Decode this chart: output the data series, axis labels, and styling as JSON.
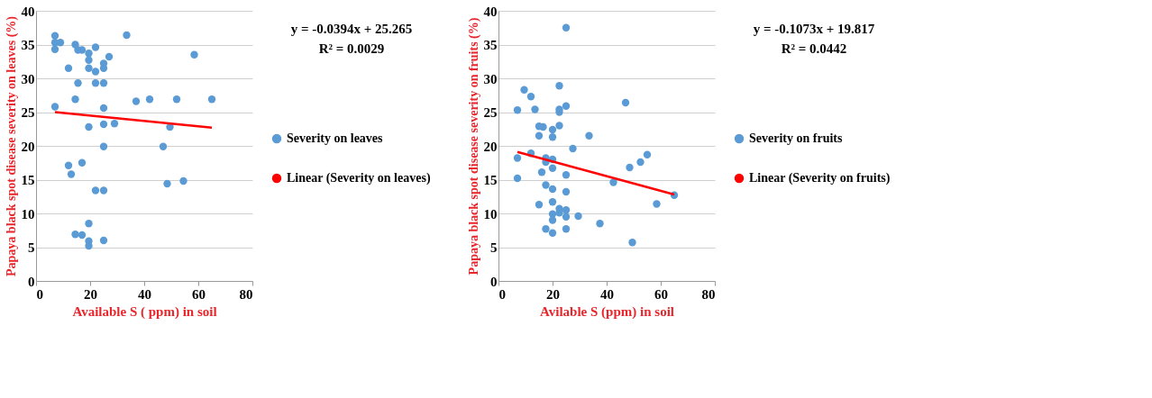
{
  "chart_data": [
    {
      "type": "scatter",
      "ylabel": "Papaya black spot disease severity on leaves (%)",
      "xlabel": "Available S ( ppm) in soil",
      "xlim": [
        0,
        80
      ],
      "xticks": [
        0,
        20,
        40,
        60,
        80
      ],
      "ylim": [
        0,
        40
      ],
      "yticks": [
        0,
        5,
        10,
        15,
        20,
        25,
        30,
        35,
        40
      ],
      "grid": "y",
      "legend": "right",
      "annotations": [
        "y = -0.0394x + 25.265",
        "R² = 0.0029"
      ],
      "series": [
        {
          "name": "Severity on leaves",
          "color": "#5b9bd5",
          "marker": "circle",
          "x": [
            7,
            7,
            7,
            9,
            12,
            14.5,
            15.5,
            17,
            15.5,
            14.5,
            7,
            19.5,
            19.5,
            19.5,
            22,
            22,
            22,
            25,
            25,
            25,
            27,
            33.5,
            25,
            19.5,
            25,
            29,
            37,
            42,
            52,
            65,
            58.5,
            49.5,
            47,
            25,
            12,
            17,
            13,
            48.5,
            54.5,
            22,
            25,
            19.5,
            14.5,
            17,
            19.5,
            19.5,
            25
          ],
          "values": [
            36.3,
            35.3,
            34.3,
            35.3,
            31.5,
            35,
            34.2,
            34.2,
            29.3,
            26.9,
            25.8,
            33.7,
            32.7,
            31.5,
            34.6,
            31,
            29.3,
            32.2,
            31.5,
            29.3,
            33.2,
            36.4,
            25.6,
            22.8,
            23.2,
            23.3,
            26.6,
            26.9,
            26.9,
            26.9,
            33.5,
            22.8,
            19.9,
            19.9,
            17.1,
            17.5,
            15.8,
            14.4,
            14.8,
            13.4,
            13.4,
            8.5,
            6.9,
            6.8,
            5.9,
            5.2,
            6
          ]
        },
        {
          "name": "Linear (Severity on leaves)",
          "type": "line",
          "color": "#ff0000",
          "x": [
            7,
            65
          ],
          "values": [
            25.0,
            22.7
          ]
        }
      ]
    },
    {
      "type": "scatter",
      "ylabel": "Papaya black spot disease severity on fruits (%)",
      "xlabel": "Avilable S (ppm) in soil",
      "xlim": [
        0,
        80
      ],
      "xticks": [
        0,
        20,
        40,
        60,
        80
      ],
      "ylim": [
        0,
        40
      ],
      "yticks": [
        0,
        5,
        10,
        15,
        20,
        25,
        30,
        35,
        40
      ],
      "grid": "y",
      "legend": "right",
      "annotations": [
        "y = -0.1073x + 19.817",
        "R² = 0.0442"
      ],
      "series": [
        {
          "name": "Severity on fruits",
          "color": "#5b9bd5",
          "marker": "circle",
          "x": [
            25,
            9.5,
            12,
            7,
            13.5,
            22.5,
            22.5,
            22.5,
            25,
            22.5,
            15,
            16.5,
            15,
            20,
            20,
            33.5,
            47,
            27.5,
            7,
            12,
            17.5,
            17.5,
            20,
            20,
            16,
            25,
            7,
            17.5,
            20,
            25,
            48.5,
            52.5,
            55,
            42.5,
            65,
            58.5,
            15,
            20,
            22.5,
            22.5,
            25,
            25,
            20,
            20,
            29.5,
            37.5,
            17.5,
            25,
            20,
            49.5
          ],
          "values": [
            37.5,
            28.3,
            27.3,
            25.3,
            25.4,
            28.9,
            25.4,
            25,
            25.9,
            23,
            22.9,
            22.8,
            21.5,
            22.4,
            21.3,
            21.5,
            26.4,
            19.6,
            18.2,
            18.9,
            18.2,
            17.6,
            18,
            16.7,
            16.1,
            15.7,
            15.2,
            14.2,
            13.6,
            13.2,
            16.8,
            17.6,
            18.7,
            14.6,
            12.7,
            11.4,
            11.3,
            11.7,
            10.7,
            10.1,
            10.5,
            9.5,
            9.9,
            9,
            9.6,
            8.5,
            7.7,
            7.7,
            7.1,
            5.7
          ]
        },
        {
          "name": "Linear (Severity on fruits)",
          "type": "line",
          "color": "#ff0000",
          "x": [
            7,
            65
          ],
          "values": [
            19.1,
            12.8
          ]
        }
      ]
    }
  ]
}
